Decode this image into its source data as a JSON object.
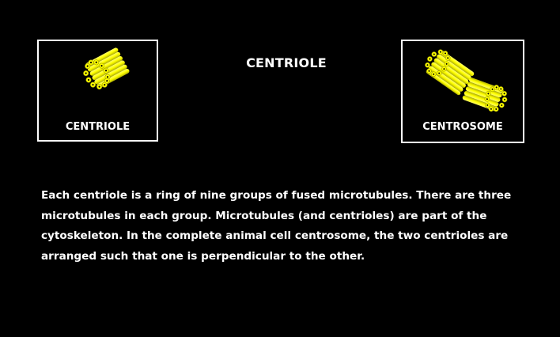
{
  "title": "CENTRIOLE",
  "panels": {
    "left": {
      "label": "CENTRIOLE",
      "icon": "centriole-icon"
    },
    "right": {
      "label": "CENTROSOME",
      "icon": "centrosome-icon"
    }
  },
  "description": "Each centriole is a ring of nine groups of fused microtubules. There are three microtubules in each group. Microtubules (and centrioles) are part of the cytoskeleton. In the complete animal cell centrosome, the two centrioles are arranged such that one is perpendicular to the other.",
  "colors": {
    "background": "#000000",
    "text": "#ffffff",
    "microtubule": "#ffff00",
    "microtubule_shade": "#c8c800"
  }
}
